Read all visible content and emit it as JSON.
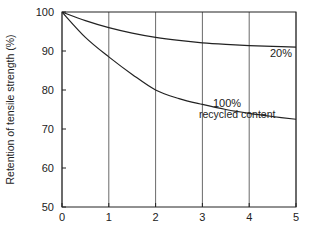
{
  "chart_data": {
    "type": "line",
    "y_label": "Retention of tensile strength (%)",
    "x": [
      0,
      0.5,
      1,
      1.5,
      2,
      2.5,
      3,
      3.5,
      4,
      4.5,
      5
    ],
    "series": [
      {
        "name": "20%",
        "color": "#222222",
        "values": [
          100,
          97.8,
          96,
          94.6,
          93.5,
          92.7,
          92.1,
          91.7,
          91.4,
          91.2,
          91
        ]
      },
      {
        "name": "100% recycled content",
        "color": "#222222",
        "values": [
          100,
          93.5,
          88.5,
          84,
          80,
          77.8,
          76.3,
          75,
          74,
          73.2,
          72.5
        ]
      }
    ],
    "xlim": [
      0,
      5
    ],
    "xticks": [
      0,
      1,
      2,
      3,
      4,
      5
    ],
    "ylim": [
      50,
      100
    ],
    "yticks": [
      50,
      60,
      70,
      80,
      90,
      100
    ],
    "grid": "x"
  }
}
